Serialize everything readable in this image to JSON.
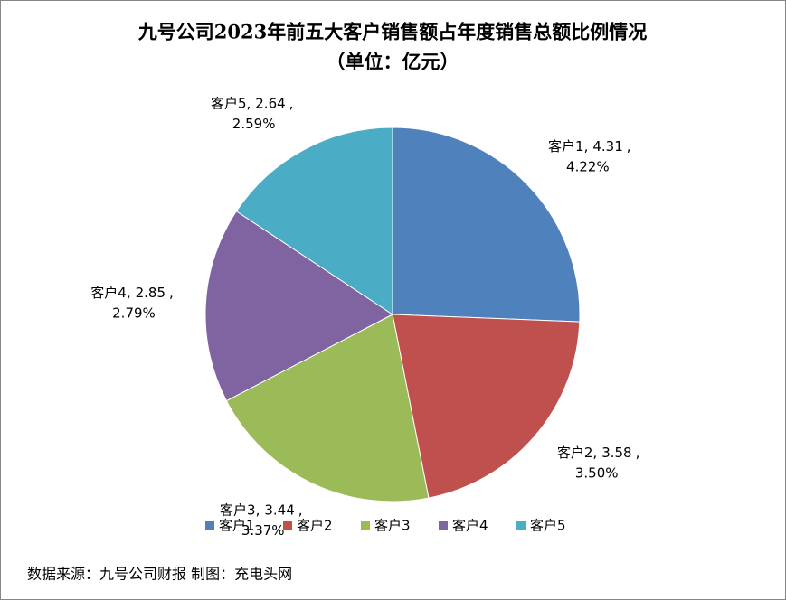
{
  "chart_data": {
    "type": "pie",
    "title": "九号公司2023年前五大客户销售额占年度销售总额比例情况",
    "subtitle": "（单位：亿元）",
    "categories": [
      "客户1",
      "客户2",
      "客户3",
      "客户4",
      "客户5"
    ],
    "values": [
      4.31,
      3.58,
      3.44,
      2.85,
      2.64
    ],
    "share_labels": [
      "4.22%",
      "3.50%",
      "3.37%",
      "2.79%",
      "2.59%"
    ],
    "label_separator": ",",
    "colors": [
      "#4f81bd",
      "#c0504d",
      "#9bbb59",
      "#8064a2",
      "#4bacc6"
    ],
    "legend": "bottom",
    "source": "数据来源：九号公司财报  制图：充电头网"
  }
}
